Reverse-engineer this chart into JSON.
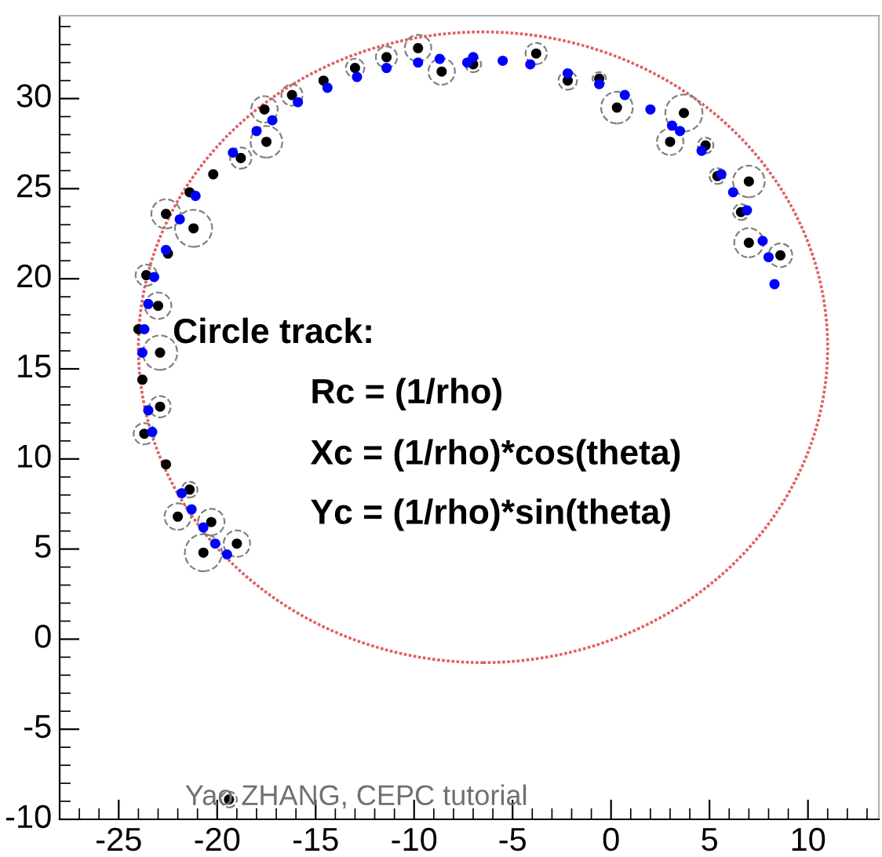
{
  "chart_data": {
    "type": "scatter",
    "xlim": [
      -28,
      13.6
    ],
    "ylim": [
      -10,
      34.6
    ],
    "xticks": [
      -25,
      -20,
      -15,
      -10,
      -5,
      0,
      5,
      10
    ],
    "yticks": [
      -10,
      -5,
      0,
      5,
      10,
      15,
      20,
      25,
      30
    ],
    "grid": false,
    "legend": false,
    "marker": "circle",
    "annotations": [
      "Circle track:",
      "Rc = (1/rho)",
      "Xc = (1/rho)*cos(theta)",
      "Yc = (1/rho)*sin(theta)",
      "Yao ZHANG, CEPC tutorial"
    ],
    "series": [
      {
        "type": "bubble",
        "color": "#808080",
        "line_style": "dashed",
        "x": [
          -23.7,
          -22.9,
          -22.9,
          -23.0,
          -23.6,
          -21.2,
          -22.6,
          -18.8,
          -17.5,
          -17.6,
          -16.2,
          -13.0,
          -11.4,
          -9.8,
          -8.6,
          -7.0,
          -3.8,
          -2.2,
          -0.6,
          0.3,
          3.7,
          3.0,
          4.8,
          5.4,
          7.0,
          6.6,
          7.0,
          8.6,
          -21.4,
          -22.0,
          -20.3,
          -20.7,
          -19.0,
          -19.4
        ],
        "values": [
          11.4,
          12.9,
          15.9,
          18.5,
          20.2,
          22.8,
          23.6,
          26.7,
          27.6,
          29.4,
          30.2,
          31.7,
          32.3,
          32.8,
          31.5,
          31.9,
          32.5,
          31.0,
          31.1,
          29.5,
          29.2,
          27.6,
          27.4,
          25.7,
          25.4,
          23.7,
          22.0,
          21.3,
          8.3,
          6.8,
          6.5,
          4.8,
          5.3,
          -8.9
        ],
        "sizes": [
          0.33,
          0.33,
          0.86,
          0.51,
          0.33,
          1,
          0.62,
          0.33,
          0.73,
          0.51,
          0.33,
          0.25,
          0.33,
          0.51,
          0.51,
          0.18,
          0.33,
          0.25,
          0.13,
          0.73,
          1,
          0.51,
          0.18,
          0.18,
          0.73,
          0.18,
          0.62,
          0.41,
          0.18,
          0.51,
          0.51,
          1,
          0.51,
          0.18
        ]
      },
      {
        "color": "#000000",
        "x": [
          -23.7,
          -24.0,
          -23.8,
          -22.9,
          -22.9,
          -23.0,
          -23.6,
          -22.5,
          -21.2,
          -22.6,
          -21.4,
          -20.2,
          -18.8,
          -17.5,
          -17.6,
          -16.2,
          -14.6,
          -13.0,
          -11.4,
          -9.8,
          -8.6,
          -7.0,
          -3.8,
          -2.2,
          -0.6,
          0.3,
          3.7,
          3.0,
          4.8,
          5.4,
          7.0,
          6.6,
          7.0,
          8.6,
          -22.6,
          -21.4,
          -22.0,
          -20.3,
          -20.7,
          -19.0,
          -19.4
        ],
        "values": [
          11.4,
          17.2,
          14.4,
          12.9,
          15.9,
          18.5,
          20.2,
          21.4,
          22.8,
          23.6,
          24.8,
          25.8,
          26.7,
          27.6,
          29.4,
          30.2,
          31.0,
          31.7,
          32.3,
          32.8,
          31.5,
          31.9,
          32.5,
          31.0,
          31.1,
          29.5,
          29.2,
          27.6,
          27.4,
          25.7,
          25.4,
          23.7,
          22.0,
          21.3,
          9.7,
          8.3,
          6.8,
          6.5,
          4.8,
          5.3,
          -8.9
        ]
      },
      {
        "color": "#0000ff",
        "x": [
          -23.3,
          -23.5,
          -23.8,
          -23.7,
          -23.5,
          -23.2,
          -22.6,
          -21.9,
          -21.1,
          -19.2,
          -18.0,
          -17.2,
          -15.9,
          -14.4,
          -12.9,
          -11.4,
          -9.8,
          -8.7,
          -7.3,
          -7.0,
          -5.5,
          -4.1,
          -2.2,
          -0.6,
          0.7,
          2.0,
          3.1,
          3.5,
          4.6,
          5.6,
          6.2,
          6.9,
          7.7,
          8.0,
          8.3,
          -21.8,
          -21.3,
          -20.7,
          -20.1,
          -19.5
        ],
        "values": [
          11.5,
          12.7,
          15.9,
          17.2,
          18.6,
          20.1,
          21.6,
          23.3,
          24.6,
          27.0,
          28.2,
          28.8,
          29.8,
          30.6,
          31.2,
          31.7,
          32.0,
          32.2,
          32.0,
          32.3,
          32.1,
          31.9,
          31.4,
          30.8,
          30.2,
          29.4,
          28.5,
          28.2,
          27.1,
          25.8,
          24.8,
          23.8,
          22.1,
          21.2,
          19.7,
          8.1,
          7.2,
          6.2,
          5.3,
          4.7
        ]
      }
    ]
  }
}
